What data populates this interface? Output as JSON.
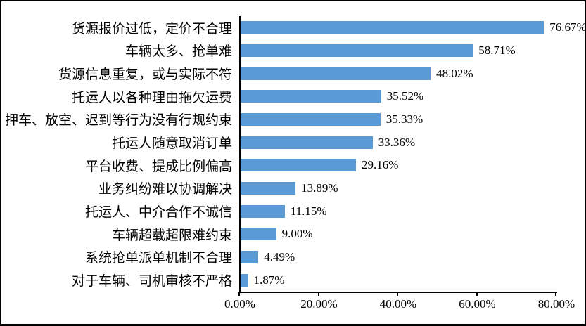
{
  "chart_data": {
    "type": "bar",
    "orientation": "horizontal",
    "title": "",
    "categories": [
      "货源报价过低，定价不合理",
      "车辆太多、抢单难",
      "货源信息重复，或与实际不符",
      "托运人以各种理由拖欠运费",
      "押车、放空、迟到等行为没有行规约束",
      "托运人随意取消订单",
      "平台收费、提成比例偏高",
      "业务纠纷难以协调解决",
      "托运人、中介合作不诚信",
      "车辆超载超限难约束",
      "系统抢单派单机制不合理",
      "对于车辆、司机审核不严格"
    ],
    "values": [
      76.67,
      58.71,
      48.02,
      35.52,
      35.33,
      33.36,
      29.16,
      13.89,
      11.15,
      9.0,
      4.49,
      1.87
    ],
    "data_labels": [
      "76.67%",
      "58.71%",
      "48.02%",
      "35.52%",
      "35.33%",
      "33.36%",
      "29.16%",
      "13.89%",
      "11.15%",
      "9.00%",
      "4.49%",
      "1.87%"
    ],
    "x_axis": {
      "min": 0,
      "max": 80,
      "tick_values": [
        0,
        20,
        40,
        60,
        80
      ],
      "tick_labels": [
        "0.00%",
        "20.00%",
        "40.00%",
        "60.00%",
        "80.00%"
      ]
    },
    "bar_color": "#5B9BD5",
    "axis_color": "#000000",
    "grid": false,
    "legend": false,
    "background": "#FFFFFF"
  }
}
